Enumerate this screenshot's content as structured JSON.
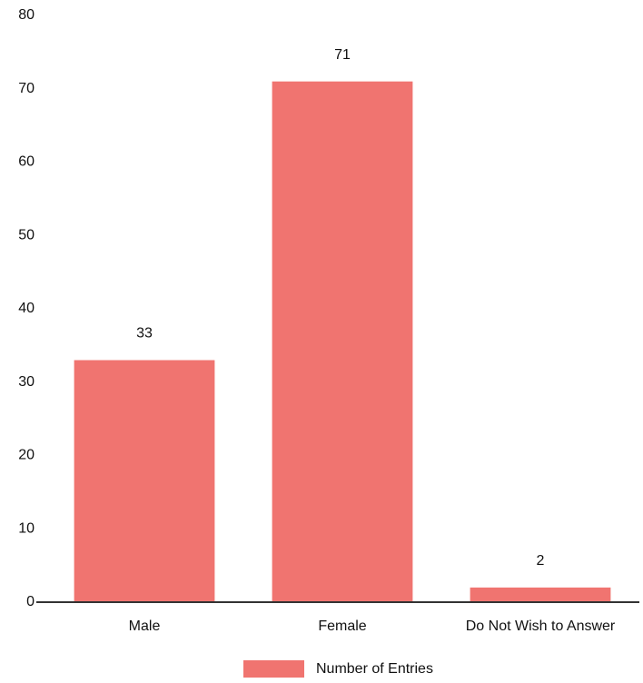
{
  "chart_data": {
    "type": "bar",
    "categories": [
      "Male",
      "Female",
      "Do Not Wish to Answer"
    ],
    "series": [
      {
        "name": "Number of Entries",
        "color": "#f07470",
        "values": [
          33,
          71,
          2
        ]
      }
    ],
    "ylim": [
      0,
      80
    ],
    "yticks": [
      0,
      10,
      20,
      30,
      40,
      50,
      60,
      70,
      80
    ],
    "grid": false,
    "legend": "bottom"
  }
}
